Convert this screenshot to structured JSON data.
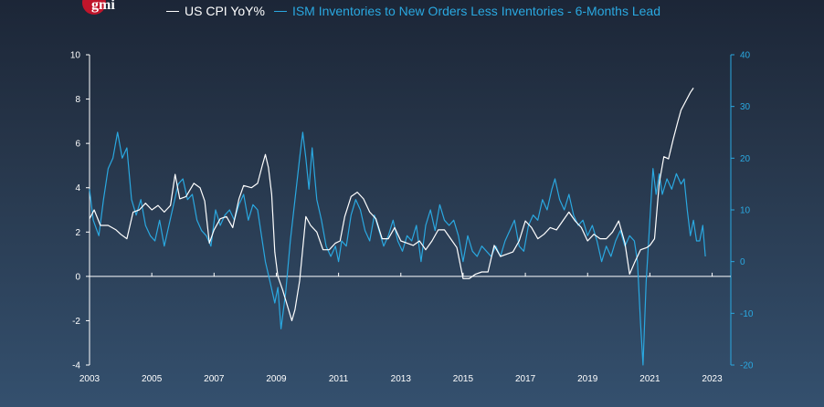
{
  "logo": {
    "text": "gmi"
  },
  "colors": {
    "cpi": "#ffffff",
    "ism": "#2aa8e0",
    "brand": "#c0152b",
    "left_axis": "#ffffff",
    "right_axis": "#2aa8e0"
  },
  "chart_data": {
    "type": "line",
    "title": "",
    "legend_position": "top",
    "grid": false,
    "x_ticks": [
      "2003",
      "2005",
      "2007",
      "2009",
      "2011",
      "2013",
      "2015",
      "2017",
      "2019",
      "2021",
      "2023"
    ],
    "y_left": {
      "ylim": [
        -4,
        10
      ],
      "ticks": [
        "-4",
        "-2",
        "0",
        "2",
        "4",
        "6",
        "8",
        "10"
      ]
    },
    "y_right": {
      "ylim": [
        -20,
        40
      ],
      "ticks": [
        "-20",
        "-10",
        "0",
        "10",
        "20",
        "30",
        "40"
      ]
    },
    "series": [
      {
        "name": "US CPI YoY%",
        "axis": "left",
        "points": [
          [
            2003.0,
            2.6
          ],
          [
            2003.15,
            3.0
          ],
          [
            2003.35,
            2.3
          ],
          [
            2003.6,
            2.3
          ],
          [
            2003.85,
            2.1
          ],
          [
            2004.0,
            1.9
          ],
          [
            2004.2,
            1.7
          ],
          [
            2004.4,
            2.9
          ],
          [
            2004.6,
            3.0
          ],
          [
            2004.8,
            3.3
          ],
          [
            2005.0,
            3.0
          ],
          [
            2005.2,
            3.2
          ],
          [
            2005.4,
            2.9
          ],
          [
            2005.6,
            3.2
          ],
          [
            2005.75,
            4.6
          ],
          [
            2005.9,
            3.5
          ],
          [
            2006.1,
            3.6
          ],
          [
            2006.35,
            4.2
          ],
          [
            2006.55,
            4.0
          ],
          [
            2006.7,
            3.4
          ],
          [
            2006.85,
            1.5
          ],
          [
            2007.0,
            2.1
          ],
          [
            2007.2,
            2.6
          ],
          [
            2007.4,
            2.7
          ],
          [
            2007.6,
            2.2
          ],
          [
            2007.8,
            3.5
          ],
          [
            2007.95,
            4.1
          ],
          [
            2008.2,
            4.0
          ],
          [
            2008.4,
            4.2
          ],
          [
            2008.55,
            5.0
          ],
          [
            2008.65,
            5.5
          ],
          [
            2008.75,
            4.9
          ],
          [
            2008.85,
            3.7
          ],
          [
            2008.95,
            1.1
          ],
          [
            2009.05,
            0.0
          ],
          [
            2009.2,
            -0.6
          ],
          [
            2009.35,
            -1.3
          ],
          [
            2009.5,
            -2.0
          ],
          [
            2009.6,
            -1.5
          ],
          [
            2009.75,
            -0.2
          ],
          [
            2009.95,
            2.7
          ],
          [
            2010.1,
            2.3
          ],
          [
            2010.3,
            2.0
          ],
          [
            2010.5,
            1.2
          ],
          [
            2010.7,
            1.2
          ],
          [
            2010.9,
            1.5
          ],
          [
            2011.05,
            1.6
          ],
          [
            2011.2,
            2.7
          ],
          [
            2011.4,
            3.6
          ],
          [
            2011.6,
            3.8
          ],
          [
            2011.8,
            3.5
          ],
          [
            2012.0,
            2.9
          ],
          [
            2012.2,
            2.6
          ],
          [
            2012.4,
            1.7
          ],
          [
            2012.6,
            1.7
          ],
          [
            2012.8,
            2.2
          ],
          [
            2013.0,
            1.6
          ],
          [
            2013.2,
            1.5
          ],
          [
            2013.4,
            1.4
          ],
          [
            2013.6,
            1.6
          ],
          [
            2013.8,
            1.2
          ],
          [
            2014.0,
            1.6
          ],
          [
            2014.2,
            2.1
          ],
          [
            2014.4,
            2.1
          ],
          [
            2014.6,
            1.7
          ],
          [
            2014.8,
            1.3
          ],
          [
            2015.0,
            -0.1
          ],
          [
            2015.2,
            -0.1
          ],
          [
            2015.4,
            0.1
          ],
          [
            2015.6,
            0.2
          ],
          [
            2015.8,
            0.2
          ],
          [
            2016.0,
            1.4
          ],
          [
            2016.2,
            0.9
          ],
          [
            2016.4,
            1.0
          ],
          [
            2016.6,
            1.1
          ],
          [
            2016.8,
            1.6
          ],
          [
            2017.0,
            2.5
          ],
          [
            2017.2,
            2.2
          ],
          [
            2017.4,
            1.7
          ],
          [
            2017.6,
            1.9
          ],
          [
            2017.8,
            2.2
          ],
          [
            2018.0,
            2.1
          ],
          [
            2018.2,
            2.5
          ],
          [
            2018.4,
            2.9
          ],
          [
            2018.6,
            2.5
          ],
          [
            2018.8,
            2.2
          ],
          [
            2019.0,
            1.6
          ],
          [
            2019.2,
            1.9
          ],
          [
            2019.4,
            1.7
          ],
          [
            2019.6,
            1.7
          ],
          [
            2019.8,
            2.0
          ],
          [
            2020.0,
            2.5
          ],
          [
            2020.2,
            1.5
          ],
          [
            2020.35,
            0.1
          ],
          [
            2020.5,
            0.6
          ],
          [
            2020.7,
            1.2
          ],
          [
            2020.9,
            1.3
          ],
          [
            2021.0,
            1.4
          ],
          [
            2021.15,
            1.7
          ],
          [
            2021.3,
            4.2
          ],
          [
            2021.45,
            5.4
          ],
          [
            2021.6,
            5.3
          ],
          [
            2021.75,
            6.2
          ],
          [
            2021.9,
            7.0
          ],
          [
            2022.0,
            7.5
          ],
          [
            2022.15,
            7.9
          ],
          [
            2022.3,
            8.3
          ],
          [
            2022.4,
            8.5
          ]
        ]
      },
      {
        "name": "ISM Inventories to New Orders Less Inventories - 6-Months Lead",
        "axis": "right",
        "points": [
          [
            2003.0,
            14.0
          ],
          [
            2003.12,
            8.0
          ],
          [
            2003.3,
            5.0
          ],
          [
            2003.45,
            12.0
          ],
          [
            2003.6,
            18.0
          ],
          [
            2003.75,
            20.0
          ],
          [
            2003.9,
            25.0
          ],
          [
            2004.05,
            20.0
          ],
          [
            2004.2,
            22.0
          ],
          [
            2004.35,
            12.0
          ],
          [
            2004.5,
            9.0
          ],
          [
            2004.65,
            12.0
          ],
          [
            2004.8,
            7.0
          ],
          [
            2004.95,
            5.0
          ],
          [
            2005.1,
            4.0
          ],
          [
            2005.25,
            8.0
          ],
          [
            2005.4,
            3.0
          ],
          [
            2005.55,
            7.0
          ],
          [
            2005.7,
            11.0
          ],
          [
            2005.85,
            15.0
          ],
          [
            2006.0,
            16.0
          ],
          [
            2006.15,
            12.0
          ],
          [
            2006.3,
            13.0
          ],
          [
            2006.45,
            8.0
          ],
          [
            2006.6,
            6.0
          ],
          [
            2006.75,
            5.0
          ],
          [
            2006.9,
            3.0
          ],
          [
            2007.05,
            10.0
          ],
          [
            2007.2,
            7.0
          ],
          [
            2007.35,
            9.0
          ],
          [
            2007.5,
            10.0
          ],
          [
            2007.65,
            8.0
          ],
          [
            2007.8,
            11.0
          ],
          [
            2007.95,
            13.0
          ],
          [
            2008.1,
            8.0
          ],
          [
            2008.25,
            11.0
          ],
          [
            2008.4,
            10.0
          ],
          [
            2008.55,
            4.0
          ],
          [
            2008.65,
            0.0
          ],
          [
            2008.8,
            -4.0
          ],
          [
            2008.95,
            -8.0
          ],
          [
            2009.05,
            -5.0
          ],
          [
            2009.15,
            -13.0
          ],
          [
            2009.3,
            -6.0
          ],
          [
            2009.45,
            4.0
          ],
          [
            2009.6,
            12.0
          ],
          [
            2009.75,
            20.0
          ],
          [
            2009.85,
            25.0
          ],
          [
            2009.95,
            20.0
          ],
          [
            2010.05,
            14.0
          ],
          [
            2010.15,
            22.0
          ],
          [
            2010.3,
            12.0
          ],
          [
            2010.45,
            8.0
          ],
          [
            2010.6,
            3.0
          ],
          [
            2010.75,
            1.0
          ],
          [
            2010.9,
            3.0
          ],
          [
            2011.0,
            0.0
          ],
          [
            2011.1,
            4.0
          ],
          [
            2011.25,
            3.0
          ],
          [
            2011.4,
            9.0
          ],
          [
            2011.55,
            12.0
          ],
          [
            2011.7,
            10.0
          ],
          [
            2011.85,
            6.0
          ],
          [
            2012.0,
            4.0
          ],
          [
            2012.15,
            9.0
          ],
          [
            2012.3,
            6.0
          ],
          [
            2012.45,
            3.0
          ],
          [
            2012.6,
            5.0
          ],
          [
            2012.75,
            8.0
          ],
          [
            2012.9,
            4.0
          ],
          [
            2013.05,
            2.0
          ],
          [
            2013.2,
            5.0
          ],
          [
            2013.35,
            4.0
          ],
          [
            2013.5,
            7.0
          ],
          [
            2013.65,
            0.0
          ],
          [
            2013.8,
            7.0
          ],
          [
            2013.95,
            10.0
          ],
          [
            2014.1,
            6.0
          ],
          [
            2014.25,
            11.0
          ],
          [
            2014.4,
            8.0
          ],
          [
            2014.55,
            7.0
          ],
          [
            2014.7,
            8.0
          ],
          [
            2014.85,
            5.0
          ],
          [
            2015.0,
            0.0
          ],
          [
            2015.15,
            5.0
          ],
          [
            2015.3,
            2.0
          ],
          [
            2015.45,
            1.0
          ],
          [
            2015.6,
            3.0
          ],
          [
            2015.75,
            2.0
          ],
          [
            2015.9,
            1.0
          ],
          [
            2016.05,
            3.0
          ],
          [
            2016.2,
            1.0
          ],
          [
            2016.35,
            4.0
          ],
          [
            2016.5,
            6.0
          ],
          [
            2016.65,
            8.0
          ],
          [
            2016.8,
            3.0
          ],
          [
            2016.95,
            2.0
          ],
          [
            2017.1,
            7.0
          ],
          [
            2017.25,
            9.0
          ],
          [
            2017.4,
            8.0
          ],
          [
            2017.55,
            12.0
          ],
          [
            2017.7,
            10.0
          ],
          [
            2017.85,
            14.0
          ],
          [
            2017.95,
            16.0
          ],
          [
            2018.1,
            12.0
          ],
          [
            2018.25,
            10.0
          ],
          [
            2018.4,
            13.0
          ],
          [
            2018.55,
            9.0
          ],
          [
            2018.7,
            7.0
          ],
          [
            2018.85,
            8.0
          ],
          [
            2019.0,
            5.0
          ],
          [
            2019.15,
            7.0
          ],
          [
            2019.3,
            4.0
          ],
          [
            2019.45,
            0.0
          ],
          [
            2019.6,
            3.0
          ],
          [
            2019.75,
            1.0
          ],
          [
            2019.9,
            4.0
          ],
          [
            2020.05,
            6.0
          ],
          [
            2020.2,
            3.0
          ],
          [
            2020.35,
            5.0
          ],
          [
            2020.5,
            4.0
          ],
          [
            2020.6,
            0.0
          ],
          [
            2020.7,
            -12.0
          ],
          [
            2020.78,
            -20.0
          ],
          [
            2020.88,
            -4.0
          ],
          [
            2021.0,
            8.0
          ],
          [
            2021.1,
            18.0
          ],
          [
            2021.2,
            13.0
          ],
          [
            2021.3,
            17.0
          ],
          [
            2021.4,
            13.0
          ],
          [
            2021.55,
            16.0
          ],
          [
            2021.7,
            14.0
          ],
          [
            2021.85,
            17.0
          ],
          [
            2022.0,
            15.0
          ],
          [
            2022.1,
            16.0
          ],
          [
            2022.2,
            10.0
          ],
          [
            2022.3,
            5.0
          ],
          [
            2022.4,
            8.0
          ],
          [
            2022.5,
            4.0
          ],
          [
            2022.6,
            4.0
          ],
          [
            2022.7,
            7.0
          ],
          [
            2022.78,
            1.0
          ]
        ]
      }
    ]
  }
}
